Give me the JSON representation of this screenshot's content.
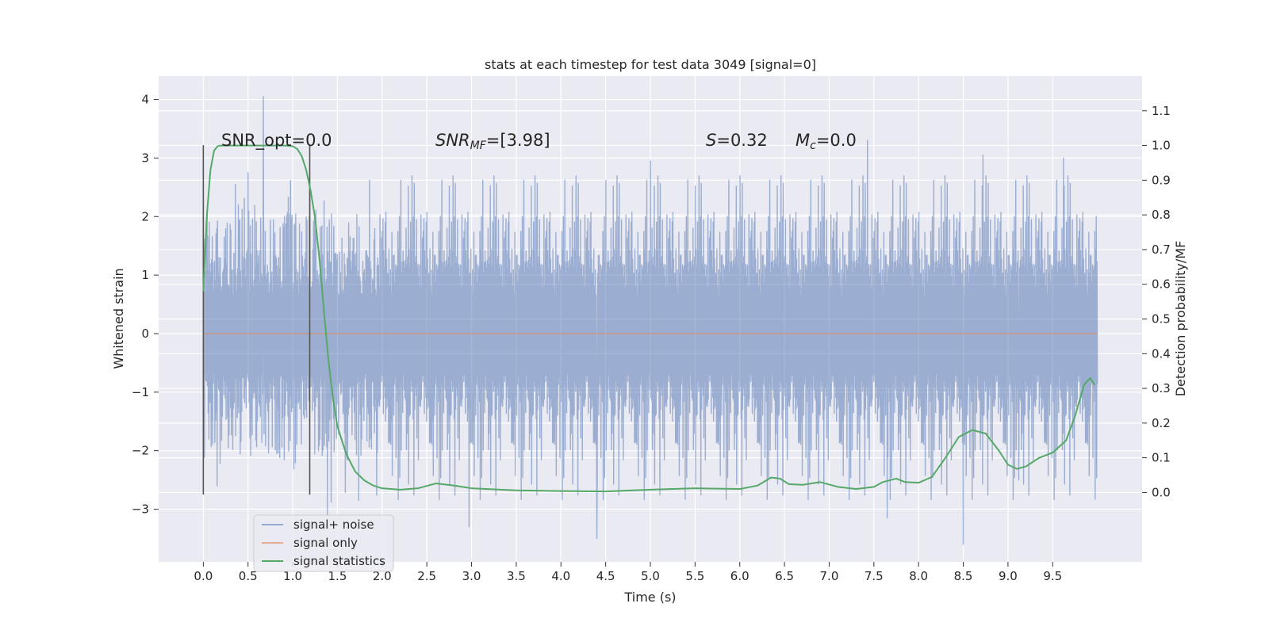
{
  "chart_data": {
    "type": "line",
    "title": "stats at each timestep for test data 3049 [signal=0]",
    "xlabel": "Time (s)",
    "ylabel": "Whitened strain",
    "y2label": "Detection probability/MF",
    "xlim": [
      -0.5,
      10.5
    ],
    "ylim": [
      -3.9,
      4.4
    ],
    "y2lim": [
      -0.2,
      1.2
    ],
    "x_ticks": [
      "0.0",
      "0.5",
      "1.0",
      "1.5",
      "2.0",
      "2.5",
      "3.0",
      "3.5",
      "4.0",
      "4.5",
      "5.0",
      "5.5",
      "6.0",
      "6.5",
      "7.0",
      "7.5",
      "8.0",
      "8.5",
      "9.0",
      "9.5"
    ],
    "y_ticks": [
      "4",
      "3",
      "2",
      "1",
      "0",
      "−1",
      "−2",
      "−3"
    ],
    "y2_ticks": [
      "1.1",
      "1.0",
      "0.9",
      "0.8",
      "0.7",
      "0.6",
      "0.5",
      "0.4",
      "0.3",
      "0.2",
      "0.1",
      "0.0"
    ],
    "grid": true,
    "legend_position": "bottom-left",
    "colors": {
      "signal_noise": "#4c72b0",
      "signal_only": "#dd8452",
      "statistics": "#55a868",
      "marker_lines": "#555555",
      "background": "#eaeaf2"
    },
    "series": [
      {
        "name": "signal+ noise",
        "description": "whitened strain noise, roughly ±1.4 body with spikes up to 4.05 and down to −3.6",
        "x_range": [
          0.0,
          10.0
        ],
        "envelope_upper": 1.45,
        "envelope_lower": -1.5,
        "peaks": [
          [
            0.67,
            4.05
          ],
          [
            7.43,
            3.3
          ],
          [
            0.5,
            2.75
          ],
          [
            5.0,
            2.95
          ],
          [
            8.72,
            3.05
          ],
          [
            9.62,
            3.0
          ]
        ],
        "troughs": [
          [
            1.39,
            -3.1
          ],
          [
            2.97,
            -3.3
          ],
          [
            4.4,
            -3.5
          ],
          [
            7.65,
            -3.15
          ],
          [
            8.5,
            -3.6
          ],
          [
            9.12,
            -2.5
          ]
        ]
      },
      {
        "name": "signal only",
        "x": [
          0.0,
          10.0
        ],
        "y": [
          0.0,
          0.0
        ]
      },
      {
        "name": "signal statistics",
        "axis": "right",
        "x": [
          0.0,
          0.04,
          0.08,
          0.12,
          0.16,
          0.2,
          0.3,
          0.5,
          0.7,
          0.9,
          1.0,
          1.05,
          1.1,
          1.15,
          1.2,
          1.25,
          1.3,
          1.35,
          1.4,
          1.45,
          1.5,
          1.6,
          1.7,
          1.8,
          1.9,
          2.0,
          2.2,
          2.4,
          2.6,
          2.8,
          3.0,
          3.5,
          4.0,
          4.5,
          5.0,
          5.5,
          6.0,
          6.2,
          6.35,
          6.45,
          6.55,
          6.7,
          6.9,
          7.1,
          7.3,
          7.5,
          7.6,
          7.75,
          7.85,
          8.0,
          8.15,
          8.3,
          8.45,
          8.6,
          8.75,
          8.9,
          9.0,
          9.1,
          9.2,
          9.35,
          9.5,
          9.65,
          9.75,
          9.85,
          9.92,
          9.97
        ],
        "y": [
          0.58,
          0.8,
          0.93,
          0.985,
          0.998,
          1.0,
          1.0,
          1.0,
          1.0,
          1.0,
          0.998,
          0.99,
          0.97,
          0.93,
          0.87,
          0.79,
          0.67,
          0.52,
          0.38,
          0.27,
          0.19,
          0.11,
          0.06,
          0.035,
          0.02,
          0.012,
          0.008,
          0.012,
          0.026,
          0.02,
          0.012,
          0.006,
          0.004,
          0.003,
          0.008,
          0.012,
          0.01,
          0.02,
          0.043,
          0.04,
          0.024,
          0.022,
          0.03,
          0.016,
          0.01,
          0.016,
          0.03,
          0.04,
          0.03,
          0.028,
          0.045,
          0.1,
          0.16,
          0.18,
          0.17,
          0.12,
          0.08,
          0.068,
          0.075,
          0.1,
          0.115,
          0.15,
          0.22,
          0.31,
          0.33,
          0.31
        ]
      }
    ],
    "vertical_markers": [
      {
        "x": 0.0,
        "y_from": -2.75,
        "y_to": 3.22
      },
      {
        "x": 1.19,
        "y_from": -2.75,
        "y_to": 3.22
      }
    ],
    "annotations": {
      "snr_opt": "SNR_opt=0.0",
      "snr_mf_prefix": "SNR",
      "snr_mf_sub": "MF",
      "snr_mf_value": "=[3.98]",
      "s_label": "S",
      "s_value": "=0.32",
      "mc_label": "M",
      "mc_sub": "c",
      "mc_value": "=0.0"
    }
  }
}
